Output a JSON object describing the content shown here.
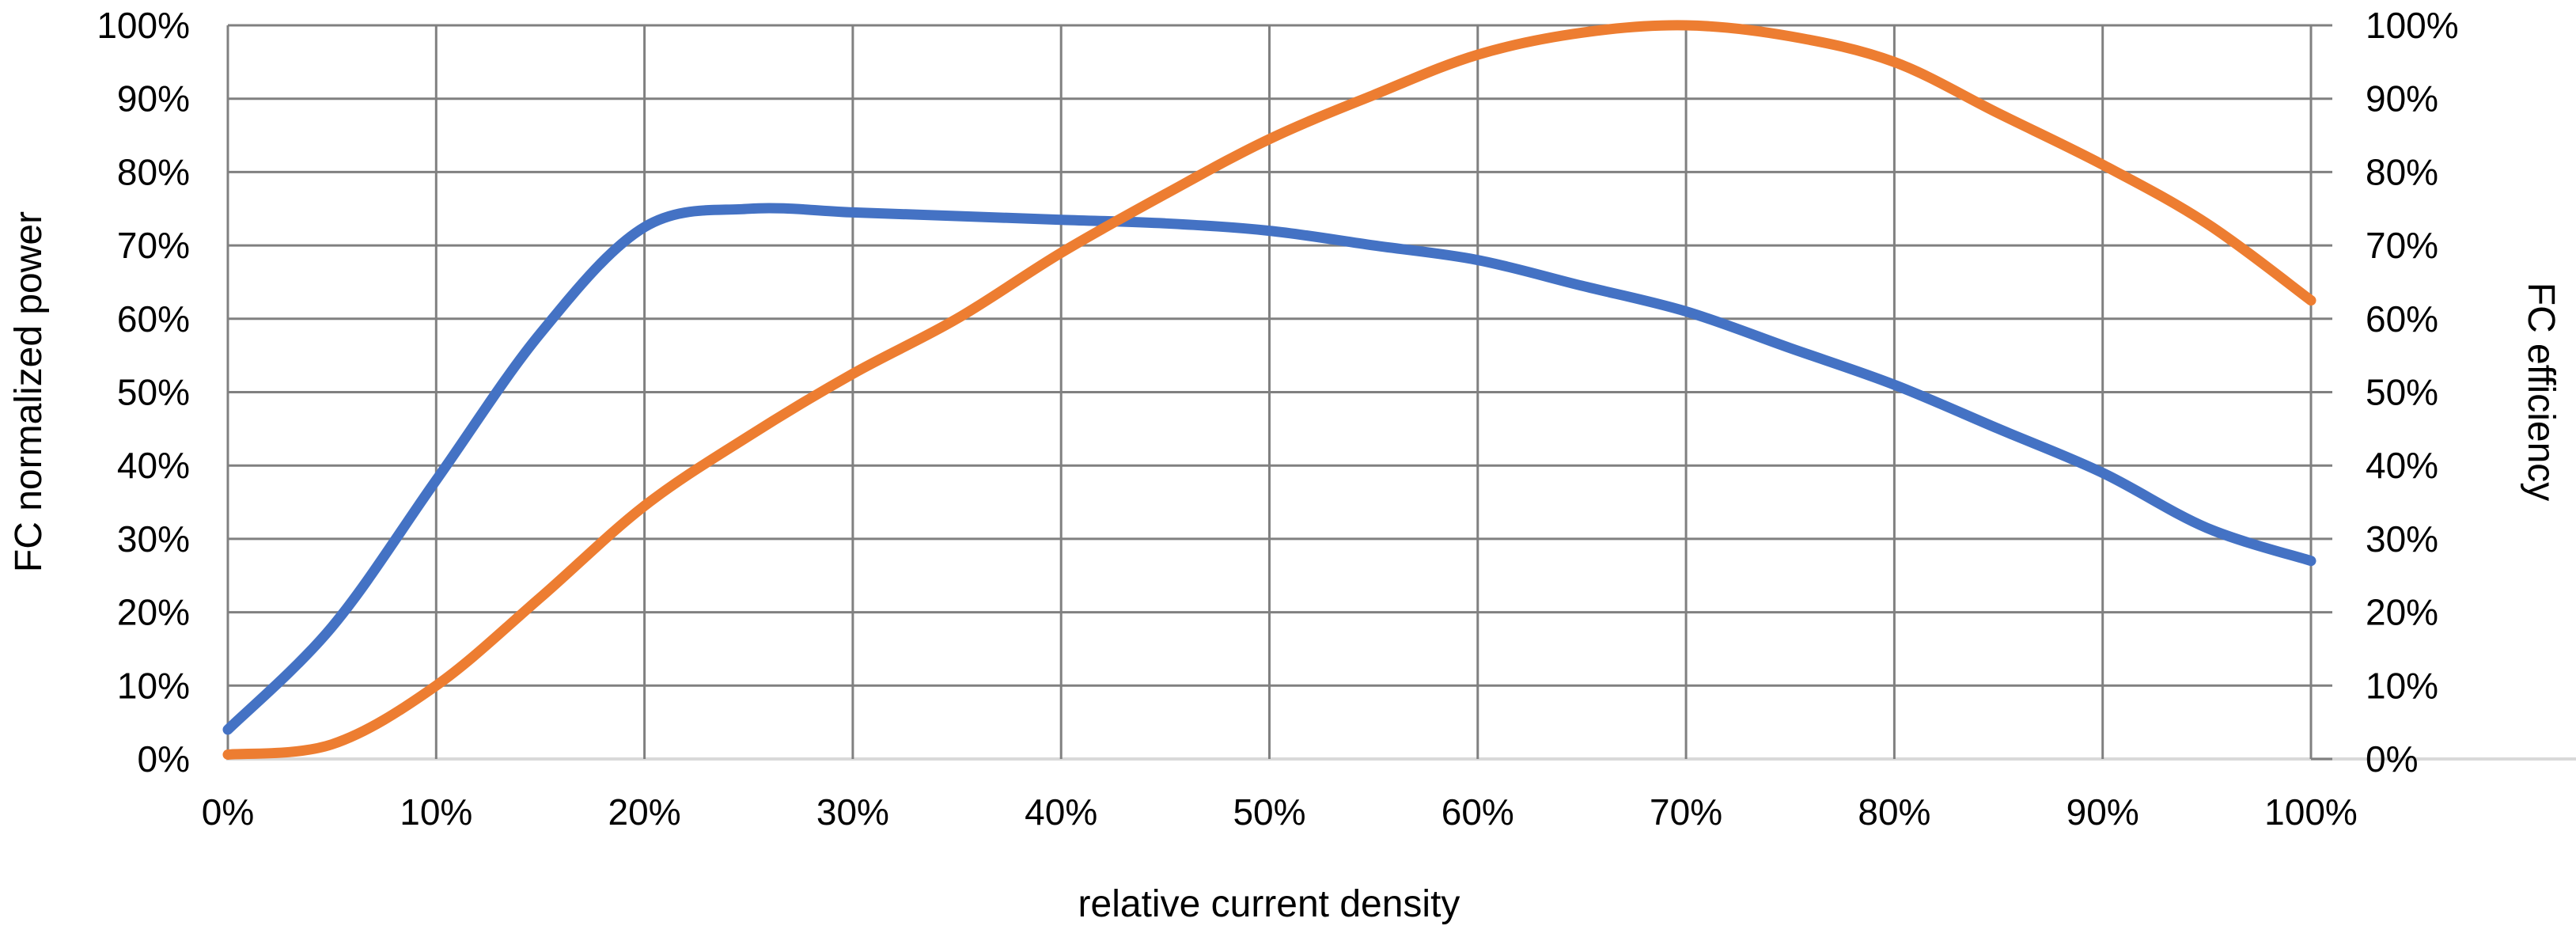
{
  "chart_data": {
    "type": "line",
    "title": "",
    "xlabel": "relative current density",
    "ylabel_left": "FC normalized power",
    "ylabel_right": "FC efficiency",
    "xlim": [
      0,
      100
    ],
    "ylim_left": [
      0,
      100
    ],
    "ylim_right": [
      0,
      100
    ],
    "grid": true,
    "legend_position": "none",
    "x_tick_labels": [
      "0%",
      "10%",
      "20%",
      "30%",
      "40%",
      "50%",
      "60%",
      "70%",
      "80%",
      "90%",
      "100%"
    ],
    "y_tick_labels_left": [
      "0%",
      "10%",
      "20%",
      "30%",
      "40%",
      "50%",
      "60%",
      "70%",
      "80%",
      "90%",
      "100%"
    ],
    "y_tick_labels_right": [
      "0%",
      "10%",
      "20%",
      "30%",
      "40%",
      "50%",
      "60%",
      "70%",
      "80%",
      "90%",
      "100%"
    ],
    "x": [
      0,
      5,
      10,
      15,
      20,
      25,
      30,
      35,
      40,
      45,
      50,
      55,
      60,
      65,
      70,
      75,
      80,
      85,
      90,
      95,
      100
    ],
    "series": [
      {
        "name": "FC efficiency",
        "axis": "right",
        "color": "#4472C4",
        "values": [
          4,
          18,
          38,
          58,
          72.5,
          75,
          74.5,
          74,
          73.5,
          73,
          72,
          70,
          68,
          64.5,
          61,
          56,
          51,
          45,
          39,
          31.5,
          27
        ]
      },
      {
        "name": "FC normalized power",
        "axis": "left",
        "color": "#ED7D31",
        "values": [
          0,
          2,
          10,
          22,
          34.5,
          44,
          52.5,
          60,
          69,
          77,
          84.5,
          90.5,
          96,
          99,
          100,
          98.5,
          95,
          88,
          81,
          73,
          62.5
        ]
      }
    ],
    "gridline_color": "#808080",
    "bottom_axis_color": "#D9D9D9",
    "text_color": "#000000"
  }
}
